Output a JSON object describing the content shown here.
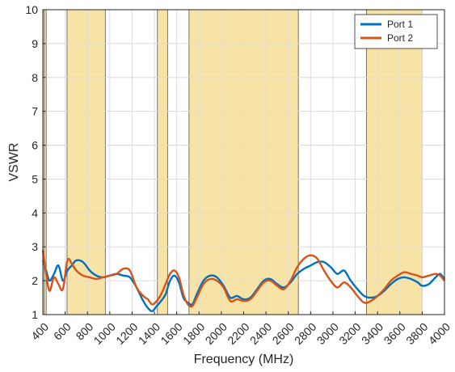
{
  "chart_data": {
    "type": "line",
    "xlabel": "Frequency (MHz)",
    "ylabel": "VSWR",
    "xlim": [
      400,
      4000
    ],
    "ylim": [
      1,
      10
    ],
    "x_ticks": [
      400,
      600,
      800,
      1000,
      1200,
      1400,
      1600,
      1800,
      2000,
      2200,
      2400,
      2600,
      2800,
      3000,
      3200,
      3400,
      3600,
      3800,
      4000
    ],
    "y_ticks": [
      1,
      2,
      3,
      4,
      5,
      6,
      7,
      8,
      9,
      10
    ],
    "grid": true,
    "legend_position": "top-right",
    "shaded_bands": [
      {
        "from": 410,
        "to": 430
      },
      {
        "from": 617,
        "to": 960
      },
      {
        "from": 1427,
        "to": 1518
      },
      {
        "from": 1710,
        "to": 2690
      },
      {
        "from": 3300,
        "to": 3800
      }
    ],
    "band_color": "#f5d98a",
    "series": [
      {
        "name": "Port 1",
        "color": "#0072bd",
        "x": [
          400,
          430,
          460,
          500,
          540,
          580,
          620,
          660,
          700,
          760,
          820,
          880,
          940,
          1000,
          1060,
          1120,
          1180,
          1240,
          1300,
          1340,
          1380,
          1420,
          1460,
          1500,
          1540,
          1580,
          1620,
          1660,
          1700,
          1740,
          1780,
          1840,
          1900,
          1960,
          2020,
          2080,
          2140,
          2200,
          2260,
          2320,
          2380,
          2440,
          2500,
          2560,
          2620,
          2680,
          2740,
          2800,
          2860,
          2920,
          2980,
          3040,
          3100,
          3160,
          3220,
          3280,
          3340,
          3400,
          3460,
          3520,
          3580,
          3640,
          3700,
          3760,
          3800,
          3860,
          3920,
          3960,
          4000
        ],
        "y": [
          2.6,
          2.3,
          2.0,
          2.2,
          2.45,
          2.0,
          2.3,
          2.45,
          2.6,
          2.55,
          2.3,
          2.15,
          2.1,
          2.15,
          2.2,
          2.15,
          2.1,
          1.8,
          1.4,
          1.2,
          1.1,
          1.25,
          1.4,
          1.6,
          2.0,
          2.15,
          1.95,
          1.5,
          1.35,
          1.3,
          1.6,
          2.0,
          2.15,
          2.1,
          1.85,
          1.5,
          1.55,
          1.45,
          1.5,
          1.75,
          2.0,
          2.05,
          1.9,
          1.8,
          1.95,
          2.2,
          2.35,
          2.45,
          2.55,
          2.55,
          2.4,
          2.2,
          2.3,
          2.0,
          1.75,
          1.55,
          1.5,
          1.55,
          1.7,
          1.9,
          2.05,
          2.1,
          2.05,
          1.95,
          1.85,
          1.9,
          2.1,
          2.2,
          2.05
        ]
      },
      {
        "name": "Port 2",
        "color": "#d95319",
        "x": [
          400,
          430,
          460,
          500,
          540,
          580,
          620,
          660,
          700,
          760,
          820,
          880,
          940,
          1000,
          1060,
          1120,
          1180,
          1240,
          1300,
          1340,
          1380,
          1420,
          1460,
          1500,
          1540,
          1580,
          1620,
          1660,
          1700,
          1740,
          1780,
          1840,
          1900,
          1960,
          2020,
          2080,
          2140,
          2200,
          2260,
          2320,
          2380,
          2440,
          2500,
          2560,
          2620,
          2680,
          2740,
          2800,
          2860,
          2920,
          2980,
          3040,
          3100,
          3160,
          3220,
          3280,
          3340,
          3400,
          3460,
          3520,
          3580,
          3640,
          3700,
          3760,
          3800,
          3860,
          3920,
          3960,
          4000
        ],
        "y": [
          2.9,
          2.2,
          1.7,
          2.1,
          1.9,
          1.75,
          2.6,
          2.5,
          2.3,
          2.15,
          2.1,
          2.05,
          2.1,
          2.15,
          2.2,
          2.35,
          2.3,
          1.8,
          1.55,
          1.45,
          1.3,
          1.4,
          1.6,
          1.9,
          2.2,
          2.3,
          2.1,
          1.6,
          1.3,
          1.25,
          1.5,
          1.9,
          2.05,
          2.0,
          1.8,
          1.4,
          1.45,
          1.4,
          1.45,
          1.7,
          1.95,
          2.0,
          1.85,
          1.75,
          2.0,
          2.4,
          2.65,
          2.75,
          2.65,
          2.3,
          2.0,
          1.8,
          1.95,
          1.8,
          1.55,
          1.35,
          1.4,
          1.55,
          1.75,
          2.0,
          2.15,
          2.25,
          2.2,
          2.15,
          2.1,
          2.15,
          2.2,
          2.15,
          2.0
        ]
      }
    ]
  }
}
